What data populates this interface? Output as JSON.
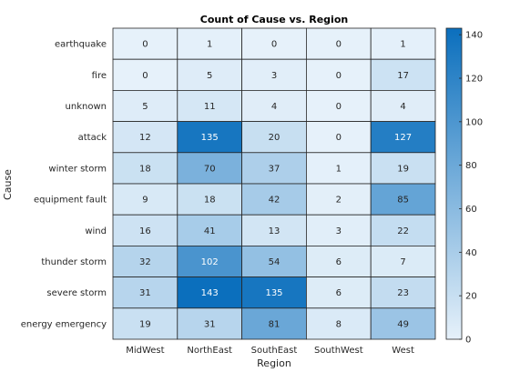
{
  "chart_data": {
    "type": "heatmap",
    "title": "Count of Cause vs. Region",
    "xlabel": "Region",
    "ylabel": "Cause",
    "x_categories": [
      "MidWest",
      "NorthEast",
      "SouthEast",
      "SouthWest",
      "West"
    ],
    "y_categories": [
      "earthquake",
      "fire",
      "unknown",
      "attack",
      "winter storm",
      "equipment fault",
      "wind",
      "thunder storm",
      "severe storm",
      "energy emergency"
    ],
    "values": [
      [
        0,
        1,
        0,
        0,
        1
      ],
      [
        0,
        5,
        3,
        0,
        17
      ],
      [
        5,
        11,
        4,
        0,
        4
      ],
      [
        12,
        135,
        20,
        0,
        127
      ],
      [
        18,
        70,
        37,
        1,
        19
      ],
      [
        9,
        18,
        42,
        2,
        85
      ],
      [
        16,
        41,
        13,
        3,
        22
      ],
      [
        32,
        102,
        54,
        6,
        7
      ],
      [
        31,
        143,
        135,
        6,
        23
      ],
      [
        19,
        31,
        81,
        8,
        49
      ]
    ],
    "colorbar": {
      "min": 0,
      "max": 143,
      "ticks": [
        0,
        20,
        40,
        60,
        80,
        100,
        120,
        140
      ],
      "color_low": "#e6f1fa",
      "color_high": "#0b6fbd"
    },
    "grid": true
  }
}
